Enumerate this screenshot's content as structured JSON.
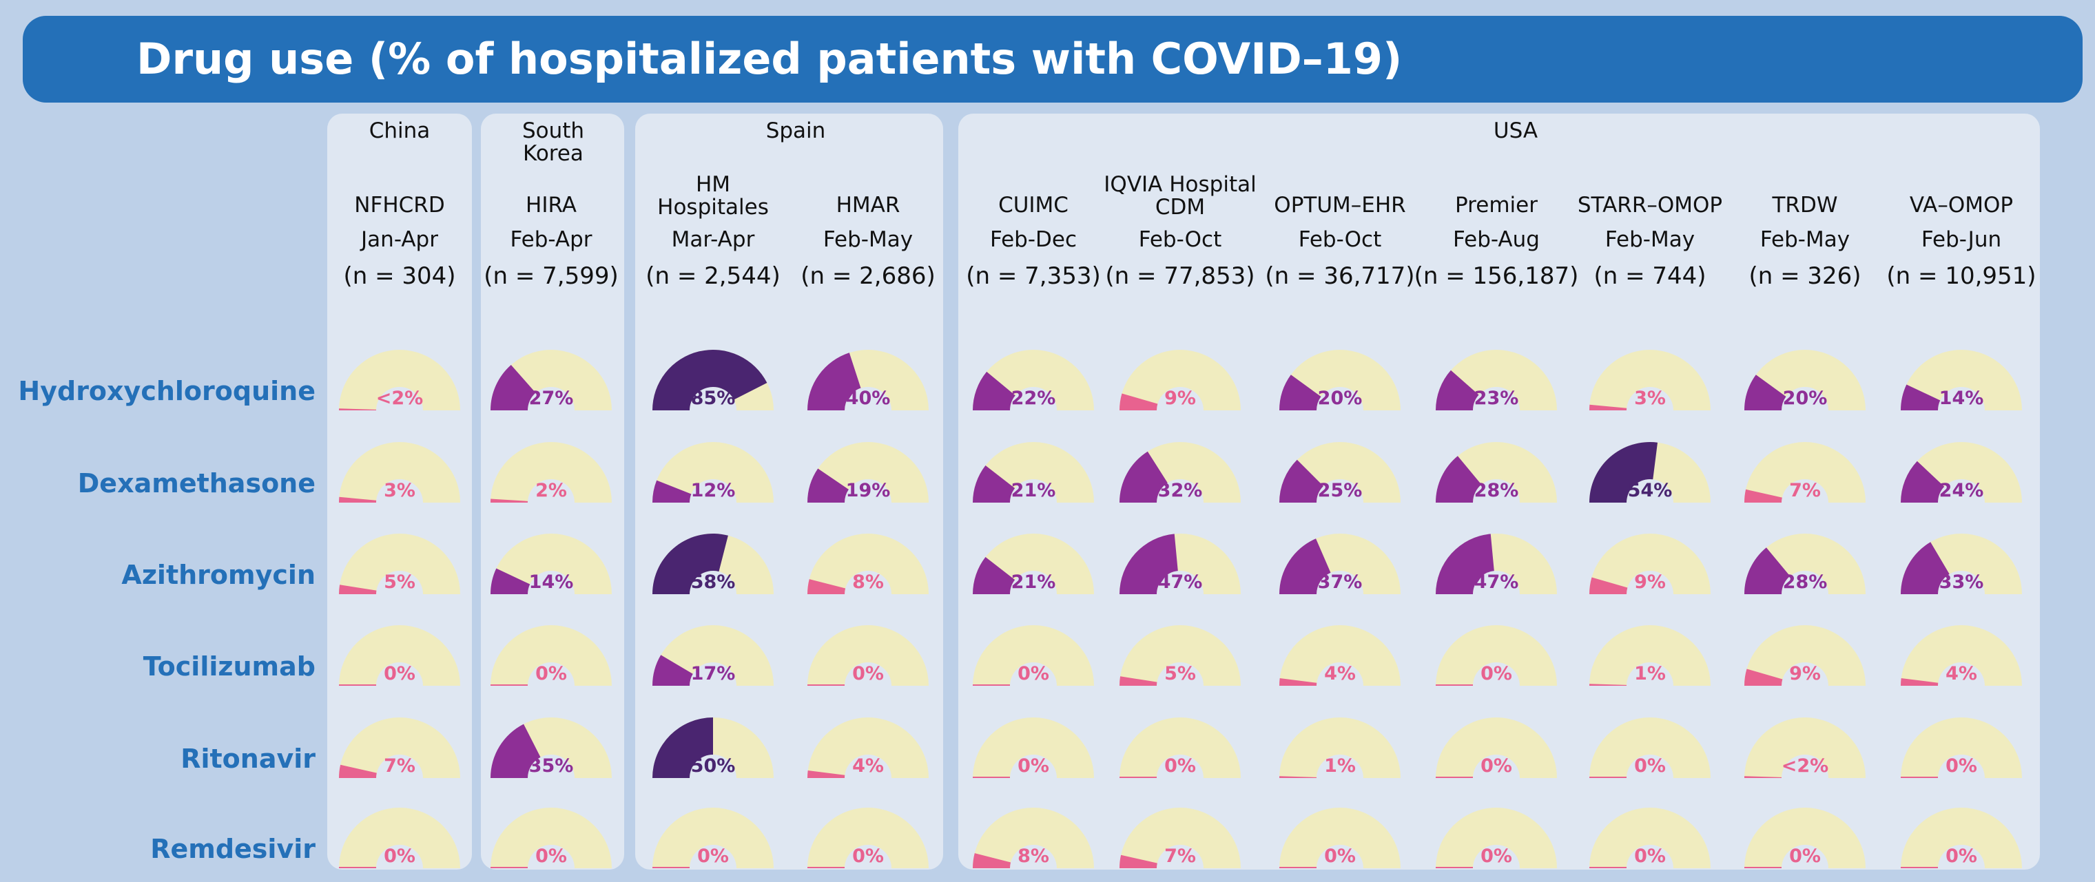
{
  "title": "Drug use (% of hospitalized patients with COVID–19)",
  "colors": {
    "background": "#bdd0e8",
    "title_bar": "#2470b8",
    "panel": "#dfe7f2",
    "track": "#f0ecbf",
    "low": "#e8628f",
    "mid": "#8e2f96",
    "high": "#4a2570",
    "row_label": "#2470b8"
  },
  "groups": [
    {
      "label": "China"
    },
    {
      "label": "South\nKorea"
    },
    {
      "label": "Spain"
    },
    {
      "label": "USA"
    }
  ],
  "databases": [
    {
      "name": "NFHCRD",
      "period": "Jan-Apr",
      "n": "(n = 304)"
    },
    {
      "name": "HIRA",
      "period": "Feb-Apr",
      "n": "(n = 7,599)"
    },
    {
      "name": "HM\nHospitales",
      "period": "Mar-Apr",
      "n": "(n = 2,544)"
    },
    {
      "name": "HMAR",
      "period": "Feb-May",
      "n": "(n = 2,686)"
    },
    {
      "name": "CUIMC",
      "period": "Feb-Dec",
      "n": "(n = 7,353)"
    },
    {
      "name": "IQVIA Hospital\nCDM",
      "period": "Feb-Oct",
      "n": "(n = 77,853)"
    },
    {
      "name": "OPTUM–EHR",
      "period": "Feb-Oct",
      "n": "(n = 36,717)"
    },
    {
      "name": "Premier",
      "period": "Feb-Aug",
      "n": "(n = 156,187)"
    },
    {
      "name": "STARR–OMOP",
      "period": "Feb-May",
      "n": "(n = 744)"
    },
    {
      "name": "TRDW",
      "period": "Feb-May",
      "n": "(n = 326)"
    },
    {
      "name": "VA–OMOP",
      "period": "Feb-Jun",
      "n": "(n = 10,951)"
    }
  ],
  "chart_data": {
    "type": "gauge",
    "title": "Drug use (% of hospitalized patients with COVID–19)",
    "unit": "%",
    "drugs": [
      "Hydroxychloroquine",
      "Dexamethasone",
      "Azithromycin",
      "Tocilizumab",
      "Ritonavir",
      "Remdesivir"
    ],
    "values": [
      [
        1,
        27,
        85,
        40,
        22,
        9,
        20,
        23,
        3,
        20,
        14
      ],
      [
        3,
        2,
        12,
        19,
        21,
        32,
        25,
        28,
        54,
        7,
        24
      ],
      [
        5,
        14,
        58,
        8,
        21,
        47,
        37,
        47,
        9,
        28,
        33
      ],
      [
        0,
        0,
        17,
        0,
        0,
        5,
        4,
        0,
        1,
        9,
        4
      ],
      [
        7,
        35,
        50,
        4,
        0,
        0,
        1,
        0,
        0,
        1,
        0
      ],
      [
        0,
        0,
        0,
        0,
        8,
        7,
        0,
        0,
        0,
        0,
        0
      ]
    ],
    "labels": [
      [
        "<2%",
        "27%",
        "85%",
        "40%",
        "22%",
        "9%",
        "20%",
        "23%",
        "3%",
        "20%",
        "14%"
      ],
      [
        "3%",
        "2%",
        "12%",
        "19%",
        "21%",
        "32%",
        "25%",
        "28%",
        "54%",
        "7%",
        "24%"
      ],
      [
        "5%",
        "14%",
        "58%",
        "8%",
        "21%",
        "47%",
        "37%",
        "47%",
        "9%",
        "28%",
        "33%"
      ],
      [
        "0%",
        "0%",
        "17%",
        "0%",
        "0%",
        "5%",
        "4%",
        "0%",
        "1%",
        "9%",
        "4%"
      ],
      [
        "7%",
        "35%",
        "50%",
        "4%",
        "0%",
        "0%",
        "1%",
        "0%",
        "0%",
        "<2%",
        "0%"
      ],
      [
        "0%",
        "0%",
        "0%",
        "0%",
        "8%",
        "7%",
        "0%",
        "0%",
        "0%",
        "0%",
        "0%"
      ]
    ]
  }
}
